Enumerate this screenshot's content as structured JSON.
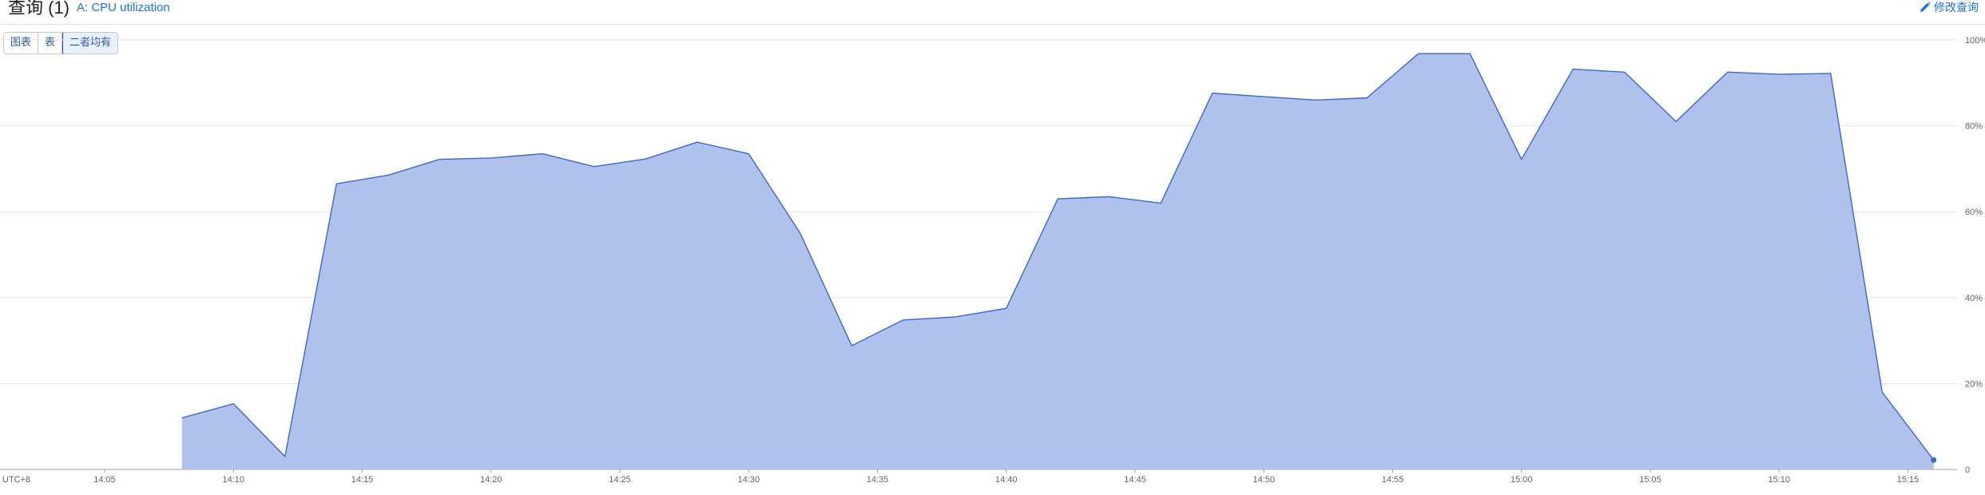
{
  "header": {
    "title": "查询 (1)",
    "series_label": "A: CPU utilization",
    "edit_label": "修改查询"
  },
  "view_toggle": {
    "options": [
      "图表",
      "表",
      "二者均有"
    ],
    "selected": "二者均有"
  },
  "colors": {
    "area_fill": "#aec2ec",
    "line": "#3f67c9",
    "accent": "#1a73e8"
  },
  "chart_data": {
    "type": "area",
    "timezone_label": "UTC+8",
    "x_ticks": [
      "14:05",
      "14:10",
      "14:15",
      "14:20",
      "14:25",
      "14:30",
      "14:35",
      "14:40",
      "14:45",
      "14:50",
      "14:55",
      "15:00",
      "15:05",
      "15:10",
      "15:15"
    ],
    "y_ticks": [
      "0",
      "20%",
      "40%",
      "60%",
      "80%",
      "100%"
    ],
    "ylim": [
      0,
      100
    ],
    "y_axis_position": "right",
    "grid": true,
    "series": [
      {
        "x": [
          "14:08",
          "14:10",
          "14:12",
          "14:14",
          "14:16",
          "14:18",
          "14:20",
          "14:22",
          "14:24",
          "14:26",
          "14:28",
          "14:30",
          "14:32",
          "14:34",
          "14:36",
          "14:38",
          "14:40",
          "14:42",
          "14:44",
          "14:46",
          "14:48",
          "14:50",
          "14:52",
          "14:54",
          "14:56",
          "14:58",
          "15:00",
          "15:02",
          "15:04",
          "15:06",
          "15:08",
          "15:10",
          "15:12",
          "15:14",
          "15:16"
        ],
        "values": [
          12,
          15.3,
          3,
          66.5,
          68.5,
          72.2,
          72.5,
          73.5,
          70.5,
          72.3,
          76.2,
          73.5,
          55,
          28.8,
          34.8,
          35.5,
          37.5,
          63,
          63.5,
          62,
          87.6,
          86.8,
          86,
          86.5,
          96.8,
          96.8,
          72.2,
          93.2,
          92.5,
          81,
          92.5,
          92,
          92.2,
          18,
          2.2
        ]
      }
    ]
  }
}
